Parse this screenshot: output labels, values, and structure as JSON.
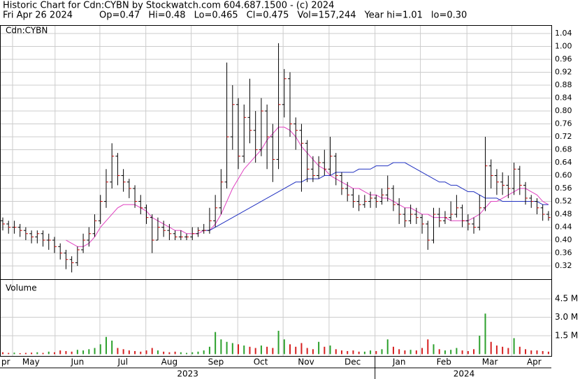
{
  "header": {
    "title": "Historic Chart for Cdn:CYBN by Stockwatch.com 604.687.1500 - (c) 2024",
    "date": "Fri Apr 26 2024",
    "stats": [
      "Op=0.47",
      "Hi=0.48",
      "Lo=0.465",
      "Cl=0.475",
      "Vol=157,244",
      "Year hi=1.01",
      "lo=0.30"
    ]
  },
  "chart_data": [
    {
      "type": "ohlc",
      "symbol": "Cdn:CYBN",
      "open": [
        0.46,
        0.45,
        0.44,
        0.44,
        0.43,
        0.42,
        0.41,
        0.42,
        0.4,
        0.4,
        0.38,
        0.36,
        0.34,
        0.33,
        0.37,
        0.4,
        0.42,
        0.46,
        0.52,
        0.58,
        0.66,
        0.6,
        0.58,
        0.56,
        0.52,
        0.5,
        0.47,
        0.4,
        0.44,
        0.43,
        0.42,
        0.41,
        0.41,
        0.41,
        0.42,
        0.43,
        0.43,
        0.46,
        0.5,
        0.58,
        0.72,
        0.82,
        0.66,
        0.78,
        0.74,
        0.68,
        0.8,
        0.72,
        0.65,
        0.82,
        0.9,
        0.76,
        0.74,
        0.7,
        0.62,
        0.6,
        0.64,
        0.62,
        0.66,
        0.6,
        0.56,
        0.54,
        0.52,
        0.51,
        0.52,
        0.53,
        0.52,
        0.54,
        0.56,
        0.51,
        0.48,
        0.46,
        0.48,
        0.47,
        0.45,
        0.4,
        0.48,
        0.46,
        0.47,
        0.48,
        0.5,
        0.46,
        0.45,
        0.44,
        0.5,
        0.63,
        0.6,
        0.58,
        0.57,
        0.56,
        0.62,
        0.57,
        0.53,
        0.52,
        0.5,
        0.48
      ],
      "high": [
        0.47,
        0.46,
        0.46,
        0.45,
        0.44,
        0.43,
        0.43,
        0.43,
        0.42,
        0.41,
        0.39,
        0.37,
        0.35,
        0.38,
        0.42,
        0.44,
        0.48,
        0.54,
        0.62,
        0.7,
        0.67,
        0.62,
        0.59,
        0.57,
        0.54,
        0.51,
        0.48,
        0.47,
        0.46,
        0.45,
        0.43,
        0.43,
        0.42,
        0.44,
        0.44,
        0.45,
        0.5,
        0.54,
        0.62,
        0.95,
        0.88,
        0.84,
        0.82,
        0.9,
        0.8,
        0.84,
        0.82,
        0.76,
        1.01,
        0.93,
        0.92,
        0.78,
        0.76,
        0.71,
        0.66,
        0.66,
        0.68,
        0.72,
        0.67,
        0.61,
        0.58,
        0.56,
        0.54,
        0.54,
        0.55,
        0.54,
        0.56,
        0.6,
        0.57,
        0.53,
        0.5,
        0.51,
        0.5,
        0.48,
        0.46,
        0.5,
        0.5,
        0.49,
        0.52,
        0.54,
        0.51,
        0.48,
        0.47,
        0.54,
        0.72,
        0.65,
        0.62,
        0.61,
        0.6,
        0.64,
        0.63,
        0.58,
        0.54,
        0.53,
        0.51,
        0.49
      ],
      "low": [
        0.43,
        0.42,
        0.42,
        0.41,
        0.4,
        0.39,
        0.39,
        0.38,
        0.37,
        0.36,
        0.34,
        0.31,
        0.3,
        0.32,
        0.36,
        0.38,
        0.41,
        0.45,
        0.5,
        0.56,
        0.57,
        0.55,
        0.53,
        0.5,
        0.48,
        0.45,
        0.36,
        0.4,
        0.41,
        0.4,
        0.4,
        0.4,
        0.4,
        0.4,
        0.41,
        0.42,
        0.42,
        0.44,
        0.48,
        0.56,
        0.68,
        0.62,
        0.64,
        0.7,
        0.64,
        0.66,
        0.62,
        0.58,
        0.62,
        0.78,
        0.72,
        0.68,
        0.55,
        0.58,
        0.58,
        0.59,
        0.6,
        0.6,
        0.57,
        0.54,
        0.52,
        0.5,
        0.49,
        0.5,
        0.5,
        0.5,
        0.51,
        0.52,
        0.49,
        0.45,
        0.44,
        0.45,
        0.45,
        0.42,
        0.37,
        0.39,
        0.44,
        0.45,
        0.46,
        0.47,
        0.44,
        0.43,
        0.42,
        0.43,
        0.49,
        0.56,
        0.54,
        0.54,
        0.53,
        0.54,
        0.54,
        0.51,
        0.5,
        0.48,
        0.46,
        0.46
      ],
      "close": [
        0.45,
        0.44,
        0.44,
        0.43,
        0.42,
        0.41,
        0.42,
        0.4,
        0.4,
        0.38,
        0.36,
        0.34,
        0.33,
        0.37,
        0.4,
        0.42,
        0.46,
        0.52,
        0.58,
        0.66,
        0.6,
        0.58,
        0.56,
        0.52,
        0.5,
        0.47,
        0.4,
        0.44,
        0.43,
        0.42,
        0.41,
        0.41,
        0.41,
        0.42,
        0.43,
        0.43,
        0.46,
        0.5,
        0.58,
        0.72,
        0.82,
        0.66,
        0.78,
        0.74,
        0.68,
        0.8,
        0.72,
        0.65,
        0.82,
        0.9,
        0.76,
        0.74,
        0.7,
        0.62,
        0.6,
        0.64,
        0.62,
        0.66,
        0.6,
        0.56,
        0.54,
        0.52,
        0.51,
        0.52,
        0.53,
        0.52,
        0.54,
        0.56,
        0.51,
        0.48,
        0.46,
        0.48,
        0.47,
        0.45,
        0.4,
        0.48,
        0.46,
        0.47,
        0.48,
        0.5,
        0.46,
        0.45,
        0.44,
        0.5,
        0.63,
        0.6,
        0.58,
        0.57,
        0.56,
        0.62,
        0.57,
        0.53,
        0.52,
        0.5,
        0.48,
        0.47
      ],
      "series": [
        {
          "color": "#e040c0",
          "values": [
            null,
            null,
            null,
            null,
            null,
            null,
            null,
            null,
            null,
            null,
            null,
            0.4,
            0.39,
            0.38,
            0.38,
            0.39,
            0.41,
            0.44,
            0.46,
            0.48,
            0.5,
            0.51,
            0.51,
            0.51,
            0.5,
            0.49,
            0.47,
            0.46,
            0.45,
            0.44,
            0.43,
            0.43,
            0.42,
            0.42,
            0.42,
            0.43,
            0.43,
            0.45,
            0.48,
            0.52,
            0.56,
            0.59,
            0.62,
            0.64,
            0.66,
            0.68,
            0.71,
            0.73,
            0.75,
            0.75,
            0.74,
            0.72,
            0.69,
            0.67,
            0.65,
            0.63,
            0.62,
            0.6,
            0.59,
            0.58,
            0.57,
            0.56,
            0.56,
            0.55,
            0.54,
            0.54,
            0.53,
            0.53,
            0.52,
            0.51,
            0.5,
            0.5,
            0.49,
            0.48,
            0.48,
            0.47,
            0.47,
            0.47,
            0.46,
            0.46,
            0.46,
            0.46,
            0.47,
            0.48,
            0.5,
            0.52,
            0.52,
            0.53,
            0.54,
            0.55,
            0.56,
            0.56,
            0.55,
            0.54,
            0.52,
            0.51
          ]
        },
        {
          "color": "#2030c0",
          "values": [
            null,
            null,
            null,
            null,
            null,
            null,
            null,
            null,
            null,
            null,
            null,
            null,
            null,
            null,
            null,
            null,
            null,
            null,
            null,
            null,
            null,
            null,
            null,
            null,
            null,
            null,
            null,
            null,
            null,
            null,
            null,
            null,
            null,
            null,
            null,
            0.43,
            0.43,
            0.44,
            0.45,
            0.46,
            0.47,
            0.48,
            0.49,
            0.5,
            0.51,
            0.52,
            0.53,
            0.54,
            0.55,
            0.56,
            0.57,
            0.58,
            0.58,
            0.59,
            0.59,
            0.59,
            0.6,
            0.6,
            0.61,
            0.61,
            0.61,
            0.61,
            0.62,
            0.62,
            0.62,
            0.63,
            0.63,
            0.63,
            0.64,
            0.64,
            0.64,
            0.63,
            0.62,
            0.61,
            0.6,
            0.59,
            0.58,
            0.58,
            0.57,
            0.57,
            0.56,
            0.55,
            0.55,
            0.54,
            0.53,
            0.53,
            0.53,
            0.52,
            0.52,
            0.52,
            0.52,
            0.52,
            0.52,
            0.52,
            0.51,
            0.51
          ]
        }
      ],
      "ylim": [
        0.279,
        1.066
      ],
      "yticks": [
        0.32,
        0.36,
        {
          "value": 0.4,
          "label": "0.40"
        },
        0.44,
        0.48,
        0.52,
        0.56,
        {
          "value": 0.6,
          "label": "0.60"
        },
        0.64,
        0.68,
        0.72,
        0.76,
        {
          "value": 0.8,
          "label": "0.80"
        },
        0.84,
        0.88,
        0.92,
        0.96,
        {
          "value": 1.0,
          "label": "1.00"
        },
        1.04
      ],
      "grid": true
    },
    {
      "type": "volume",
      "title": "Volume",
      "values": [
        0.15,
        0.1,
        0.12,
        0.08,
        0.1,
        0.12,
        0.15,
        0.1,
        0.2,
        0.15,
        0.3,
        0.25,
        0.2,
        0.35,
        0.3,
        0.4,
        0.5,
        0.8,
        1.4,
        1.1,
        0.5,
        0.4,
        0.3,
        0.25,
        0.2,
        0.3,
        0.5,
        0.3,
        0.2,
        0.15,
        0.2,
        0.15,
        0.1,
        0.15,
        0.2,
        0.3,
        0.6,
        1.8,
        1.2,
        1.0,
        0.9,
        0.8,
        0.7,
        0.6,
        0.5,
        0.7,
        0.6,
        0.5,
        1.9,
        1.2,
        0.8,
        0.6,
        0.9,
        0.5,
        0.4,
        1.0,
        0.6,
        0.7,
        0.4,
        0.3,
        0.25,
        0.3,
        0.2,
        0.2,
        0.3,
        0.25,
        0.4,
        1.2,
        0.6,
        0.4,
        0.3,
        0.35,
        0.3,
        0.5,
        1.2,
        0.8,
        0.4,
        0.3,
        0.35,
        0.5,
        0.3,
        0.25,
        0.4,
        1.5,
        3.3,
        1.0,
        0.7,
        0.6,
        0.5,
        1.3,
        0.6,
        0.4,
        0.3,
        0.3,
        0.25,
        0.2
      ],
      "ylim": [
        -0.15,
        6.1
      ],
      "yticks": [
        {
          "value": 1.5,
          "label": "1.5 M"
        },
        {
          "value": 3.0,
          "label": "3.0 M"
        },
        {
          "value": 4.5,
          "label": "4.5 M"
        }
      ],
      "xgrid": [
        1.7,
        9.1,
        16.9,
        24.9,
        32.8,
        40.9,
        48.8,
        56.8,
        64.8,
        72.7,
        80.8,
        88.6
      ],
      "xticks": [
        {
          "value": 0.5,
          "label": "pr"
        },
        {
          "value": 4.9,
          "label": "May"
        },
        {
          "value": 13.0,
          "label": "Jun"
        },
        {
          "value": 20.9,
          "label": "Jul"
        },
        {
          "value": 29.0,
          "label": "Aug"
        },
        {
          "value": 37.1,
          "label": "Sep"
        },
        {
          "value": 44.9,
          "label": "Oct"
        },
        {
          "value": 52.8,
          "label": "Nov"
        },
        {
          "value": 60.9,
          "label": "Dec"
        },
        {
          "value": 69.0,
          "label": "Jan"
        },
        {
          "value": 76.8,
          "label": "Feb"
        },
        {
          "value": 84.8,
          "label": "Mar"
        },
        {
          "value": 92.5,
          "label": "Apr"
        }
      ],
      "years": [
        {
          "value": 32.2,
          "label": "2023"
        },
        {
          "value": 80.3,
          "label": "2024"
        }
      ],
      "year_divider": 64.8
    }
  ]
}
